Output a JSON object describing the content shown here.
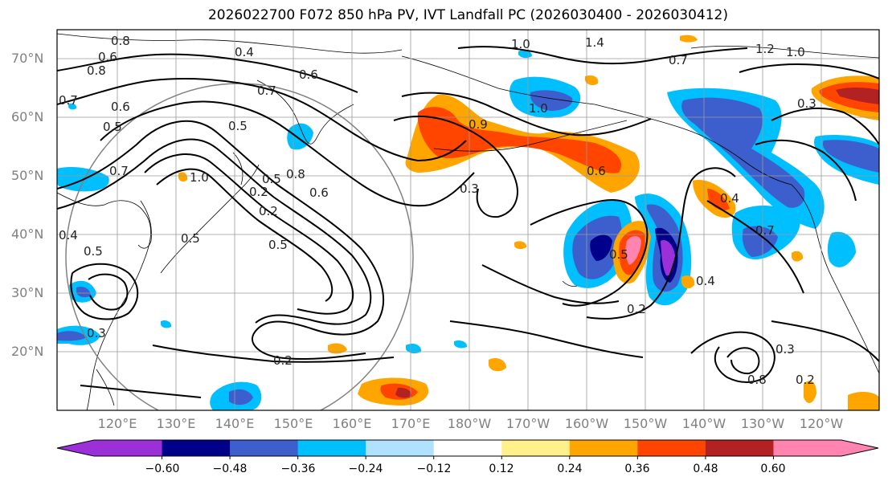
{
  "title": "2026022700 F072 850 hPa PV, IVT Landfall PC (2026030400 - 2026030412)",
  "lat_labels": [
    "70°N",
    "60°N",
    "50°N",
    "40°N",
    "30°N",
    "20°N"
  ],
  "lon_labels": [
    "120°E",
    "130°E",
    "140°E",
    "150°E",
    "160°E",
    "170°E",
    "180°W",
    "170°W",
    "160°W",
    "150°W",
    "140°W",
    "130°W",
    "120°W"
  ],
  "colorbar": {
    "colors": [
      "#9b30d9",
      "#00008b",
      "#3c5fcd",
      "#00bfff",
      "#b0e2ff",
      "#ffffff",
      "#fff08c",
      "#ffa500",
      "#ff4500",
      "#b22222",
      "#ff85b0"
    ],
    "ticks": [
      "−0.60",
      "−0.48",
      "−0.36",
      "−0.24",
      "−0.12",
      "0.12",
      "0.24",
      "0.36",
      "0.48",
      "0.60"
    ]
  },
  "contour_labels": [
    "0.8",
    "0.6",
    "0.4",
    "0.8",
    "1.0",
    "1.4",
    "0.7",
    "1.2",
    "1.0",
    "0.7",
    "0.6",
    "0.5",
    "0.3",
    "0.7",
    "1.0",
    "0.5",
    "0.6",
    "0.9",
    "1.0",
    "0.8",
    "0.5",
    "0.2",
    "0.6",
    "0.3",
    "0.4",
    "0.5",
    "0.6",
    "0.7",
    "0.5",
    "0.4",
    "0.2",
    "0.4",
    "0.5",
    "0.2",
    "0.5",
    "0.3",
    "0.2",
    "0.3",
    "0.7",
    "0.8",
    "0.2"
  ]
}
